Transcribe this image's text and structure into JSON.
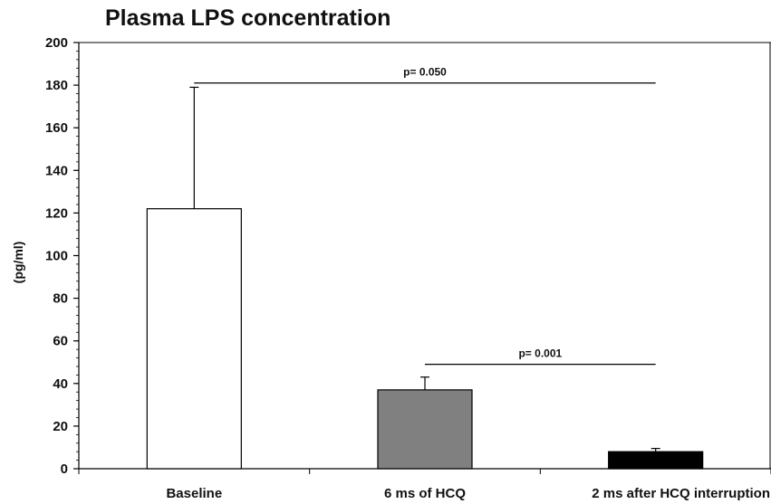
{
  "chart_data": {
    "type": "bar",
    "title": "Plasma LPS concentration",
    "xlabel": "",
    "ylabel": "(pg/ml)",
    "ylim": [
      0,
      200
    ],
    "yticks": [
      0,
      20,
      40,
      60,
      80,
      100,
      120,
      140,
      160,
      180,
      200
    ],
    "categories": [
      "Baseline",
      "6 ms of HCQ",
      "2 ms after HCQ interruption"
    ],
    "values": [
      122,
      37,
      8
    ],
    "error_upper": [
      179,
      43,
      9.5
    ],
    "bar_colors": [
      "#ffffff",
      "#808080",
      "#000000"
    ],
    "grid": false,
    "legend": "none",
    "annotations": [
      {
        "text": "p= 0.050",
        "from": "Baseline",
        "to": "2 ms after HCQ interruption",
        "y": 181
      },
      {
        "text": "p= 0.001",
        "from": "6 ms of HCQ",
        "to": "2 ms after HCQ interruption",
        "y": 49
      }
    ]
  }
}
